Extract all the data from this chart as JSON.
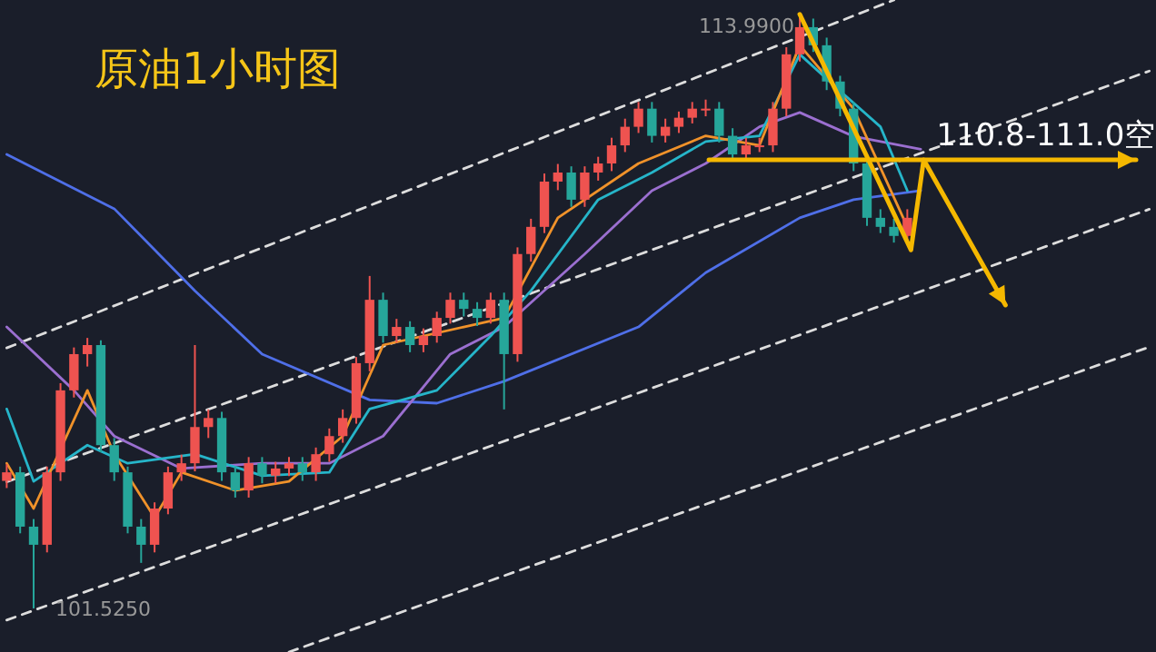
{
  "chart_data": {
    "type": "candlestick",
    "title": "原油1小时图",
    "categories": [
      null,
      null,
      null,
      null,
      null,
      null,
      null,
      null,
      null,
      null,
      null,
      null,
      null,
      null,
      null,
      null,
      null,
      null,
      null,
      null,
      null,
      null,
      null,
      null,
      null,
      null,
      null,
      null,
      null,
      null,
      null,
      null,
      null,
      null,
      null,
      null,
      null,
      null,
      null,
      null,
      null,
      null,
      null,
      null,
      null,
      null,
      null,
      null,
      null,
      null,
      null,
      null,
      null,
      null,
      null,
      null,
      null,
      null,
      null,
      null,
      null,
      null,
      null,
      null,
      null,
      null,
      null,
      null,
      null,
      null,
      null,
      null,
      null,
      null,
      null,
      null,
      null,
      null,
      null,
      null,
      null,
      null,
      null,
      null,
      null,
      null
    ],
    "ohlc": [
      [
        104.2,
        104.55,
        104.05,
        104.38
      ],
      [
        104.38,
        104.5,
        103.1,
        103.24
      ],
      [
        103.24,
        103.4,
        101.525,
        102.86
      ],
      [
        102.86,
        104.5,
        102.7,
        104.38
      ],
      [
        104.38,
        106.25,
        104.2,
        106.1
      ],
      [
        106.1,
        107.0,
        105.95,
        106.86
      ],
      [
        106.86,
        107.2,
        106.6,
        107.05
      ],
      [
        107.05,
        107.15,
        104.8,
        104.95
      ],
      [
        104.95,
        105.1,
        104.2,
        104.38
      ],
      [
        104.38,
        104.5,
        103.1,
        103.24
      ],
      [
        103.24,
        103.4,
        102.48,
        102.86
      ],
      [
        102.86,
        103.75,
        102.7,
        103.62
      ],
      [
        103.62,
        104.5,
        103.5,
        104.38
      ],
      [
        104.38,
        104.75,
        104.2,
        104.57
      ],
      [
        104.57,
        107.05,
        104.4,
        105.33
      ],
      [
        105.33,
        105.7,
        105.1,
        105.52
      ],
      [
        105.52,
        105.65,
        104.2,
        104.38
      ],
      [
        104.38,
        104.5,
        103.85,
        104.0
      ],
      [
        104.0,
        104.7,
        103.85,
        104.57
      ],
      [
        104.57,
        104.7,
        104.15,
        104.31
      ],
      [
        104.31,
        104.6,
        104.15,
        104.46
      ],
      [
        104.46,
        104.7,
        104.3,
        104.57
      ],
      [
        104.57,
        104.7,
        104.2,
        104.38
      ],
      [
        104.38,
        104.9,
        104.2,
        104.76
      ],
      [
        104.76,
        105.3,
        104.6,
        105.14
      ],
      [
        105.14,
        105.7,
        105.0,
        105.52
      ],
      [
        105.52,
        106.8,
        105.4,
        106.67
      ],
      [
        106.67,
        108.5,
        106.5,
        108.0
      ],
      [
        108.0,
        108.15,
        107.1,
        107.24
      ],
      [
        107.24,
        107.6,
        107.1,
        107.43
      ],
      [
        107.43,
        107.55,
        106.9,
        107.05
      ],
      [
        107.05,
        107.4,
        106.9,
        107.24
      ],
      [
        107.24,
        107.75,
        107.1,
        107.62
      ],
      [
        107.62,
        108.15,
        107.5,
        108.0
      ],
      [
        108.0,
        108.15,
        107.65,
        107.81
      ],
      [
        107.81,
        107.95,
        107.45,
        107.62
      ],
      [
        107.62,
        108.15,
        107.5,
        108.0
      ],
      [
        108.0,
        108.15,
        105.7,
        106.86
      ],
      [
        106.86,
        109.1,
        106.7,
        108.96
      ],
      [
        108.96,
        109.7,
        108.8,
        109.53
      ],
      [
        109.53,
        110.65,
        109.4,
        110.48
      ],
      [
        110.48,
        110.85,
        110.3,
        110.67
      ],
      [
        110.67,
        110.8,
        109.95,
        110.1
      ],
      [
        110.1,
        110.8,
        109.95,
        110.67
      ],
      [
        110.67,
        111.0,
        110.5,
        110.86
      ],
      [
        110.86,
        111.4,
        110.7,
        111.24
      ],
      [
        111.24,
        111.8,
        111.1,
        111.63
      ],
      [
        111.63,
        112.15,
        111.5,
        112.01
      ],
      [
        112.01,
        112.15,
        111.3,
        111.44
      ],
      [
        111.44,
        111.8,
        111.3,
        111.63
      ],
      [
        111.63,
        111.95,
        111.5,
        111.82
      ],
      [
        111.82,
        112.15,
        111.7,
        112.01
      ],
      [
        112.01,
        112.2,
        111.85,
        112.01
      ],
      [
        112.01,
        112.15,
        111.3,
        111.44
      ],
      [
        111.44,
        111.6,
        110.9,
        111.05
      ],
      [
        111.05,
        111.4,
        110.9,
        111.24
      ],
      [
        111.24,
        111.4,
        111.1,
        111.24
      ],
      [
        111.24,
        112.15,
        111.1,
        112.01
      ],
      [
        112.01,
        113.3,
        111.85,
        113.15
      ],
      [
        113.15,
        113.99,
        113.0,
        113.72
      ],
      [
        113.72,
        113.9,
        113.2,
        113.34
      ],
      [
        113.34,
        113.5,
        112.4,
        112.58
      ],
      [
        112.58,
        112.7,
        111.85,
        112.01
      ],
      [
        112.01,
        112.15,
        110.7,
        110.86
      ],
      [
        110.86,
        111.0,
        109.55,
        109.72
      ],
      [
        109.72,
        109.9,
        109.4,
        109.53
      ],
      [
        109.53,
        109.7,
        109.2,
        109.34
      ],
      [
        109.34,
        109.9,
        109.2,
        109.72
      ],
      null,
      null,
      null,
      null,
      null,
      null,
      null,
      null,
      null,
      null,
      null,
      null,
      null,
      null,
      null,
      null,
      null,
      null
    ],
    "colors": [
      "#ef5350",
      "#26a69a",
      "#26a69a",
      "#ef5350",
      "#ef5350",
      "#ef5350",
      "#ef5350",
      "#26a69a",
      "#26a69a",
      "#26a69a",
      "#26a69a",
      "#ef5350",
      "#ef5350",
      "#ef5350",
      "#ef5350",
      "#ef5350",
      "#26a69a",
      "#26a69a",
      "#ef5350",
      "#26a69a",
      "#ef5350",
      "#ef5350",
      "#26a69a",
      "#ef5350",
      "#ef5350",
      "#ef5350",
      "#ef5350",
      "#ef5350",
      "#26a69a",
      "#ef5350",
      "#26a69a",
      "#ef5350",
      "#ef5350",
      "#ef5350",
      "#26a69a",
      "#26a69a",
      "#ef5350",
      "#26a69a",
      "#ef5350",
      "#ef5350",
      "#ef5350",
      "#ef5350",
      "#26a69a",
      "#ef5350",
      "#ef5350",
      "#ef5350",
      "#ef5350",
      "#ef5350",
      "#26a69a",
      "#ef5350",
      "#ef5350",
      "#ef5350",
      "#ef5350",
      "#26a69a",
      "#26a69a",
      "#ef5350",
      "#ef5350",
      "#ef5350",
      "#ef5350",
      "#ef5350",
      "#26a69a",
      "#26a69a",
      "#26a69a",
      "#26a69a",
      "#26a69a",
      "#26a69a",
      "#26a69a",
      "#ef5350",
      null,
      null,
      null,
      null,
      null,
      null,
      null,
      null,
      null,
      null,
      null,
      null,
      null,
      null,
      null,
      null,
      null,
      null
    ],
    "series": [
      {
        "type": "line",
        "color": "#dddddd",
        "line_style": "dashed",
        "values": [
          106.99,
          null,
          null,
          null,
          null,
          null,
          null,
          null,
          null,
          null,
          null,
          null,
          null,
          null,
          null,
          null,
          null,
          null,
          null,
          null,
          null,
          null,
          null,
          null,
          null,
          null,
          null,
          null,
          null,
          null,
          null,
          null,
          null,
          null,
          null,
          null,
          null,
          null,
          null,
          null,
          null,
          null,
          null,
          null,
          null,
          null,
          null,
          null,
          null,
          null,
          null,
          null,
          null,
          null,
          null,
          null,
          null,
          null,
          null,
          null,
          null,
          null,
          null,
          null,
          null,
          null,
          114.29,
          null,
          null,
          null,
          null,
          null,
          null,
          null,
          null,
          null,
          null,
          null,
          null,
          null,
          null,
          null,
          null,
          null,
          null,
          null
        ]
      },
      {
        "type": "line",
        "color": "#dddddd",
        "line_style": "dashed",
        "values": [
          104.18,
          null,
          null,
          null,
          null,
          null,
          null,
          null,
          null,
          null,
          null,
          null,
          null,
          null,
          null,
          null,
          null,
          null,
          null,
          null,
          null,
          null,
          null,
          null,
          null,
          null,
          null,
          null,
          null,
          null,
          null,
          null,
          null,
          null,
          null,
          null,
          null,
          null,
          null,
          null,
          null,
          null,
          null,
          null,
          null,
          null,
          null,
          null,
          null,
          null,
          null,
          null,
          null,
          null,
          null,
          null,
          null,
          null,
          null,
          null,
          null,
          null,
          null,
          null,
          null,
          null,
          null,
          null,
          null,
          null,
          null,
          null,
          null,
          null,
          null,
          null,
          null,
          null,
          null,
          null,
          null,
          null,
          null,
          null,
          null,
          112.8
        ]
      },
      {
        "type": "line",
        "color": "#dddddd",
        "line_style": "dashed",
        "values": [
          101.28,
          null,
          null,
          null,
          null,
          null,
          null,
          null,
          null,
          null,
          null,
          null,
          null,
          null,
          null,
          null,
          null,
          null,
          null,
          null,
          null,
          null,
          null,
          null,
          null,
          null,
          null,
          null,
          null,
          null,
          null,
          null,
          null,
          null,
          null,
          null,
          null,
          null,
          null,
          null,
          null,
          null,
          null,
          null,
          null,
          null,
          null,
          null,
          null,
          null,
          null,
          null,
          null,
          null,
          null,
          null,
          null,
          null,
          null,
          null,
          null,
          null,
          null,
          null,
          null,
          null,
          null,
          null,
          null,
          null,
          null,
          null,
          null,
          null,
          null,
          null,
          null,
          null,
          null,
          null,
          null,
          null,
          null,
          null,
          null,
          109.9
        ]
      },
      {
        "type": "line",
        "color": "#dddddd",
        "line_style": "dashed",
        "values": [
          null,
          null,
          null,
          null,
          null,
          null,
          null,
          null,
          null,
          null,
          null,
          null,
          null,
          null,
          null,
          null,
          null,
          null,
          null,
          null,
          null,
          100.61,
          null,
          null,
          null,
          null,
          null,
          null,
          null,
          null,
          null,
          null,
          null,
          null,
          null,
          null,
          null,
          null,
          null,
          null,
          null,
          null,
          null,
          null,
          null,
          null,
          null,
          null,
          null,
          null,
          null,
          null,
          null,
          null,
          null,
          null,
          null,
          null,
          null,
          null,
          null,
          null,
          null,
          null,
          null,
          null,
          null,
          null,
          null,
          null,
          null,
          null,
          null,
          null,
          null,
          null,
          null,
          null,
          null,
          null,
          null,
          null,
          null,
          null,
          null,
          107.01
        ]
      },
      {
        "type": "line",
        "color": "#4f6fe8",
        "values": [
          111.05,
          null,
          null,
          null,
          null,
          null,
          null,
          null,
          109.91,
          null,
          null,
          null,
          null,
          null,
          108.19,
          null,
          null,
          null,
          null,
          106.86,
          null,
          null,
          null,
          null,
          null,
          null,
          null,
          105.9,
          null,
          null,
          null,
          null,
          105.83,
          null,
          null,
          null,
          null,
          106.29,
          null,
          null,
          null,
          null,
          null,
          null,
          null,
          null,
          null,
          107.43,
          null,
          null,
          null,
          null,
          108.57,
          null,
          null,
          null,
          null,
          null,
          null,
          109.72,
          null,
          null,
          null,
          110.1,
          null,
          null,
          null,
          null,
          110.29,
          null,
          null,
          null,
          null,
          null,
          null,
          null,
          null,
          null,
          null,
          null,
          null,
          null,
          null,
          null,
          null,
          null
        ]
      },
      {
        "type": "line",
        "color": "#9b6fd0",
        "values": [
          107.43,
          null,
          null,
          null,
          null,
          106.1,
          null,
          null,
          105.14,
          null,
          null,
          null,
          null,
          104.46,
          null,
          null,
          null,
          null,
          null,
          104.57,
          null,
          null,
          null,
          null,
          104.57,
          null,
          null,
          null,
          105.14,
          null,
          null,
          null,
          null,
          106.86,
          null,
          null,
          null,
          107.43,
          null,
          null,
          null,
          null,
          null,
          108.96,
          null,
          null,
          null,
          null,
          110.29,
          null,
          null,
          null,
          110.86,
          null,
          null,
          null,
          111.63,
          null,
          null,
          111.93,
          null,
          null,
          null,
          111.43,
          null,
          null,
          null,
          null,
          111.16,
          null,
          null,
          null,
          null,
          null,
          null,
          null,
          null,
          null,
          null,
          null,
          null,
          null,
          null,
          null,
          null,
          null
        ]
      },
      {
        "type": "line",
        "color": "#26b5c9",
        "values": [
          105.71,
          null,
          104.19,
          null,
          null,
          null,
          104.95,
          null,
          null,
          104.57,
          null,
          null,
          null,
          null,
          104.76,
          null,
          null,
          null,
          null,
          104.31,
          null,
          null,
          null,
          null,
          104.38,
          null,
          null,
          105.71,
          null,
          null,
          null,
          null,
          106.1,
          null,
          null,
          null,
          107.24,
          null,
          null,
          108.19,
          null,
          null,
          null,
          null,
          110.1,
          null,
          null,
          null,
          110.67,
          null,
          null,
          null,
          111.32,
          null,
          null,
          null,
          111.44,
          null,
          null,
          113.15,
          null,
          null,
          112.38,
          null,
          null,
          111.63,
          null,
          110.29,
          null,
          null,
          null,
          null,
          null,
          null,
          null,
          null,
          null,
          null,
          null,
          null,
          null,
          null,
          null,
          null,
          null,
          null
        ]
      },
      {
        "type": "line",
        "color": "#f0922a",
        "values": [
          104.57,
          null,
          103.62,
          null,
          null,
          null,
          106.1,
          null,
          104.76,
          null,
          null,
          103.43,
          null,
          104.38,
          null,
          null,
          null,
          104.0,
          null,
          null,
          null,
          104.19,
          null,
          null,
          null,
          105.14,
          null,
          null,
          107.05,
          null,
          null,
          null,
          null,
          null,
          107.43,
          null,
          null,
          107.62,
          null,
          null,
          null,
          109.72,
          null,
          null,
          null,
          null,
          null,
          110.86,
          null,
          null,
          null,
          null,
          111.44,
          null,
          null,
          null,
          111.24,
          null,
          null,
          113.34,
          null,
          null,
          null,
          112.01,
          null,
          null,
          null,
          109.53,
          null,
          null,
          null,
          null,
          null,
          null,
          null,
          null,
          null,
          null,
          null,
          null,
          null,
          null,
          null,
          null,
          null,
          null
        ]
      }
    ],
    "annotations": [
      "113.9900",
      "101.5250",
      "110.8-111.0空"
    ]
  }
}
